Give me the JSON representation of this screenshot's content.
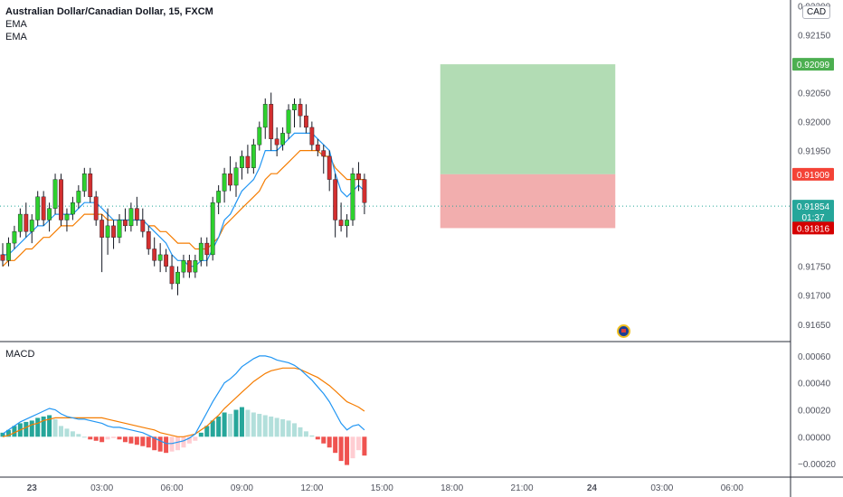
{
  "header": {
    "title": "Australian Dollar/Canadian Dollar, 15, FXCM",
    "ema_1": "EMA",
    "ema_2": "EMA",
    "macd_label": "MACD",
    "currency": "CAD"
  },
  "colors": {
    "up": "#26a69a",
    "up_candle": "#2ed12e",
    "down": "#d32f2f",
    "ema_fast": "#2196f3",
    "ema_slow": "#f57c00",
    "macd_line": "#2196f3",
    "signal_line": "#f57c00",
    "profit_zone": "#a5d6a7",
    "loss_zone": "#ef9a9a"
  },
  "chart_data": {
    "type": "candlestick",
    "x_tick_labels": [
      "23",
      "03:00",
      "06:00",
      "09:00",
      "12:00",
      "15:00",
      "18:00",
      "21:00",
      "24",
      "03:00",
      "06:00"
    ],
    "price_axis": {
      "ylim": [
        0.9162,
        0.9221
      ],
      "ticks": [
        "0.92200",
        "0.92150",
        "0.92050",
        "0.92000",
        "0.91950",
        "0.91750",
        "0.91700",
        "0.91650"
      ]
    },
    "price_labels": [
      {
        "label": "take_profit",
        "value": "0.92099",
        "color": "#4caf50"
      },
      {
        "label": "entry",
        "value": "0.91909",
        "color": "#f44336"
      },
      {
        "label": "last_price",
        "value": "0.91854",
        "countdown": "01:37",
        "color": "#26a69a"
      },
      {
        "label": "stop_loss",
        "value": "0.91816",
        "color": "#d50000"
      }
    ],
    "position": {
      "start_bar": 75,
      "end_bar": 105,
      "take_profit": 0.92099,
      "entry": 0.91909,
      "stop_loss": 0.91816
    },
    "candles": [
      [
        0.9177,
        0.9179,
        0.9175,
        0.9176
      ],
      [
        0.9176,
        0.918,
        0.9175,
        0.9179
      ],
      [
        0.9179,
        0.9182,
        0.9178,
        0.9181
      ],
      [
        0.9181,
        0.9185,
        0.918,
        0.9184
      ],
      [
        0.9184,
        0.9186,
        0.918,
        0.9181
      ],
      [
        0.9181,
        0.9184,
        0.9179,
        0.9183
      ],
      [
        0.9183,
        0.9188,
        0.9182,
        0.9187
      ],
      [
        0.9187,
        0.9188,
        0.9182,
        0.9183
      ],
      [
        0.9183,
        0.9186,
        0.9181,
        0.9185
      ],
      [
        0.9185,
        0.9191,
        0.9184,
        0.919
      ],
      [
        0.919,
        0.9191,
        0.9182,
        0.9183
      ],
      [
        0.9183,
        0.9185,
        0.9181,
        0.9184
      ],
      [
        0.9184,
        0.9187,
        0.9183,
        0.9186
      ],
      [
        0.9186,
        0.9189,
        0.9185,
        0.9188
      ],
      [
        0.9188,
        0.9192,
        0.9187,
        0.9191
      ],
      [
        0.9191,
        0.9192,
        0.9186,
        0.9187
      ],
      [
        0.9187,
        0.9188,
        0.9182,
        0.9183
      ],
      [
        0.9183,
        0.9184,
        0.9174,
        0.918
      ],
      [
        0.918,
        0.9185,
        0.9177,
        0.9182
      ],
      [
        0.9182,
        0.9183,
        0.9178,
        0.918
      ],
      [
        0.918,
        0.9184,
        0.9179,
        0.9183
      ],
      [
        0.9183,
        0.9185,
        0.9181,
        0.9182
      ],
      [
        0.9182,
        0.9186,
        0.9181,
        0.9185
      ],
      [
        0.9185,
        0.9187,
        0.9182,
        0.9183
      ],
      [
        0.9183,
        0.9185,
        0.918,
        0.9181
      ],
      [
        0.9181,
        0.9182,
        0.9177,
        0.9178
      ],
      [
        0.9178,
        0.918,
        0.9175,
        0.9176
      ],
      [
        0.9176,
        0.9179,
        0.9174,
        0.9177
      ],
      [
        0.9177,
        0.9178,
        0.9174,
        0.9175
      ],
      [
        0.9175,
        0.9177,
        0.9171,
        0.9172
      ],
      [
        0.9172,
        0.9175,
        0.917,
        0.9174
      ],
      [
        0.9174,
        0.9177,
        0.9173,
        0.9176
      ],
      [
        0.9176,
        0.9177,
        0.9173,
        0.9174
      ],
      [
        0.9174,
        0.9177,
        0.9173,
        0.9176
      ],
      [
        0.9176,
        0.918,
        0.9175,
        0.9179
      ],
      [
        0.9179,
        0.918,
        0.9175,
        0.9177
      ],
      [
        0.9177,
        0.9187,
        0.9176,
        0.9186
      ],
      [
        0.9186,
        0.9189,
        0.9184,
        0.9188
      ],
      [
        0.9188,
        0.9192,
        0.9186,
        0.9191
      ],
      [
        0.9191,
        0.9194,
        0.9188,
        0.9189
      ],
      [
        0.9189,
        0.9193,
        0.9187,
        0.9192
      ],
      [
        0.9192,
        0.9195,
        0.919,
        0.9194
      ],
      [
        0.9194,
        0.9196,
        0.9191,
        0.9192
      ],
      [
        0.9192,
        0.9197,
        0.9191,
        0.9196
      ],
      [
        0.9196,
        0.92,
        0.9195,
        0.9199
      ],
      [
        0.9199,
        0.9204,
        0.9197,
        0.9203
      ],
      [
        0.9203,
        0.9205,
        0.9195,
        0.9197
      ],
      [
        0.9197,
        0.9199,
        0.9194,
        0.9196
      ],
      [
        0.9196,
        0.9199,
        0.9195,
        0.9198
      ],
      [
        0.9198,
        0.9203,
        0.9197,
        0.9202
      ],
      [
        0.9202,
        0.9204,
        0.9199,
        0.9203
      ],
      [
        0.9203,
        0.9204,
        0.9199,
        0.9201
      ],
      [
        0.9201,
        0.9203,
        0.9198,
        0.9199
      ],
      [
        0.9199,
        0.92,
        0.9195,
        0.9196
      ],
      [
        0.9196,
        0.9197,
        0.9194,
        0.9195
      ],
      [
        0.9195,
        0.9196,
        0.9191,
        0.9194
      ],
      [
        0.9194,
        0.9195,
        0.9188,
        0.919
      ],
      [
        0.919,
        0.9191,
        0.918,
        0.9183
      ],
      [
        0.9183,
        0.9186,
        0.9181,
        0.9182
      ],
      [
        0.9182,
        0.9184,
        0.918,
        0.9183
      ],
      [
        0.9183,
        0.9192,
        0.9182,
        0.9191
      ],
      [
        0.9191,
        0.9193,
        0.9188,
        0.919
      ],
      [
        0.919,
        0.9191,
        0.9184,
        0.9186
      ]
    ],
    "ema_fast": [
      0.9177,
      0.9177,
      0.9178,
      0.9179,
      0.918,
      0.9181,
      0.9182,
      0.9182,
      0.9183,
      0.9184,
      0.9184,
      0.9184,
      0.9184,
      0.9185,
      0.9186,
      0.9186,
      0.9186,
      0.9185,
      0.9184,
      0.9183,
      0.9183,
      0.9183,
      0.9183,
      0.9183,
      0.9183,
      0.9182,
      0.9181,
      0.918,
      0.9179,
      0.9177,
      0.9176,
      0.9176,
      0.9175,
      0.9175,
      0.9176,
      0.9176,
      0.9178,
      0.918,
      0.9183,
      0.9184,
      0.9186,
      0.9188,
      0.9189,
      0.919,
      0.9192,
      0.9195,
      0.9195,
      0.9195,
      0.9196,
      0.9197,
      0.9198,
      0.9198,
      0.9198,
      0.9198,
      0.9197,
      0.9196,
      0.9195,
      0.9191,
      0.9188,
      0.9187,
      0.9188,
      0.9189,
      0.9188
    ],
    "ema_slow": [
      0.9175,
      0.9176,
      0.9176,
      0.9177,
      0.9178,
      0.9178,
      0.9179,
      0.918,
      0.918,
      0.9181,
      0.9182,
      0.9182,
      0.9182,
      0.9183,
      0.9184,
      0.9184,
      0.9184,
      0.9184,
      0.9183,
      0.9183,
      0.9183,
      0.9183,
      0.9183,
      0.9183,
      0.9183,
      0.9182,
      0.9182,
      0.9181,
      0.9181,
      0.918,
      0.9179,
      0.9179,
      0.9179,
      0.9178,
      0.9178,
      0.9178,
      0.9179,
      0.918,
      0.9182,
      0.9183,
      0.9184,
      0.9185,
      0.9186,
      0.9187,
      0.9188,
      0.919,
      0.9191,
      0.9191,
      0.9192,
      0.9193,
      0.9194,
      0.9195,
      0.9195,
      0.9195,
      0.9195,
      0.9194,
      0.9194,
      0.9192,
      0.9191,
      0.919,
      0.919,
      0.919,
      0.919
    ],
    "macd_axis": {
      "ylim": [
        -0.0003,
        0.0007
      ],
      "ticks": [
        "0.00060",
        "0.00040",
        "0.00020",
        "0.00000",
        "−0.00020"
      ]
    },
    "macd_hist": [
      3e-05,
      5e-05,
      8e-05,
      0.0001,
      0.00011,
      0.00012,
      0.00014,
      0.00015,
      0.00016,
      0.00013,
      8e-05,
      6e-05,
      4e-05,
      2e-05,
      0.0,
      -2e-05,
      -3e-05,
      -4e-05,
      -2e-05,
      -1e-05,
      -2e-05,
      -4e-05,
      -5e-05,
      -6e-05,
      -7e-05,
      -8e-05,
      -0.0001,
      -0.00011,
      -0.00012,
      -0.00011,
      -0.0001,
      -8e-05,
      -5e-05,
      -3e-05,
      3e-05,
      8e-05,
      0.00012,
      0.00015,
      0.00018,
      0.00017,
      0.0002,
      0.00022,
      0.0002,
      0.00018,
      0.00017,
      0.00016,
      0.00015,
      0.00014,
      0.00013,
      0.00012,
      0.0001,
      7e-05,
      4e-05,
      1e-05,
      -2e-05,
      -5e-05,
      -8e-05,
      -0.00012,
      -0.00018,
      -0.00021,
      -0.00016,
      -0.0001,
      -0.00014
    ],
    "macd_line": [
      2e-05,
      5e-05,
      8e-05,
      0.00011,
      0.00013,
      0.00015,
      0.00017,
      0.00019,
      0.00021,
      0.0002,
      0.00017,
      0.00015,
      0.00014,
      0.00013,
      0.00013,
      0.00012,
      0.00011,
      0.0001,
      8e-05,
      7e-05,
      7e-05,
      6e-05,
      5e-05,
      4e-05,
      3e-05,
      1e-05,
      -1e-05,
      -3e-05,
      -5e-05,
      -5e-05,
      -4e-05,
      -3e-05,
      -1e-05,
      2e-05,
      0.0001,
      0.00018,
      0.00026,
      0.00033,
      0.0004,
      0.00043,
      0.00047,
      0.00052,
      0.00055,
      0.00058,
      0.0006,
      0.0006,
      0.00059,
      0.00057,
      0.00056,
      0.00055,
      0.00053,
      0.0005,
      0.00046,
      0.00042,
      0.00037,
      0.00032,
      0.00026,
      0.00018,
      0.0001,
      5e-05,
      8e-05,
      9e-05,
      5e-05
    ],
    "signal_line": [
      0.0,
      1e-05,
      3e-05,
      5e-05,
      7e-05,
      9e-05,
      0.0001,
      0.00012,
      0.00013,
      0.00014,
      0.00014,
      0.00014,
      0.00014,
      0.00014,
      0.00014,
      0.00014,
      0.00014,
      0.00014,
      0.00013,
      0.00012,
      0.00011,
      0.0001,
      9e-05,
      8e-05,
      7e-05,
      6e-05,
      5e-05,
      3e-05,
      2e-05,
      1e-05,
      0.0,
      0.0,
      1e-05,
      2e-05,
      5e-05,
      8e-05,
      0.00012,
      0.00016,
      0.00021,
      0.00025,
      0.00029,
      0.00033,
      0.00037,
      0.00041,
      0.00044,
      0.00047,
      0.00049,
      0.0005,
      0.00051,
      0.00051,
      0.00051,
      0.0005,
      0.00048,
      0.00046,
      0.00044,
      0.00041,
      0.00038,
      0.00034,
      0.0003,
      0.00026,
      0.00024,
      0.00022,
      0.00019
    ]
  }
}
